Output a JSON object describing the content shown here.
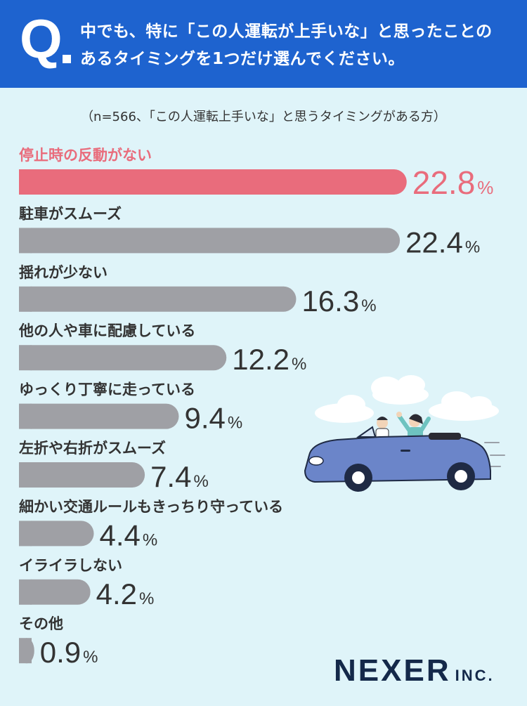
{
  "question": {
    "mark": "Q",
    "line1": "中でも、特に「この人運転が上手いな」と思ったことの",
    "line2": "あるタイミングを1つだけ選んでください。"
  },
  "subtitle": "（n=566、「この人運転上手いな」と思うタイミングがある方）",
  "logo": {
    "name": "NEXER",
    "suffix": "INC."
  },
  "colors": {
    "header": "#1e63cf",
    "highlight": "#e96c7c",
    "bar": "#9fa0a5",
    "background": "#dff4f9"
  },
  "chart_data": {
    "type": "bar",
    "orientation": "horizontal",
    "unit": "%",
    "categories": [
      "停止時の反動がない",
      "駐車がスムーズ",
      "揺れが少ない",
      "他の人や車に配慮している",
      "ゆっくり丁寧に走っている",
      "左折や右折がスムーズ",
      "細かい交通ルールもきっちり守っている",
      "イライラしない",
      "その他"
    ],
    "values": [
      22.8,
      22.4,
      16.3,
      12.2,
      9.4,
      7.4,
      4.4,
      4.2,
      0.9
    ],
    "highlight_index": 0
  }
}
